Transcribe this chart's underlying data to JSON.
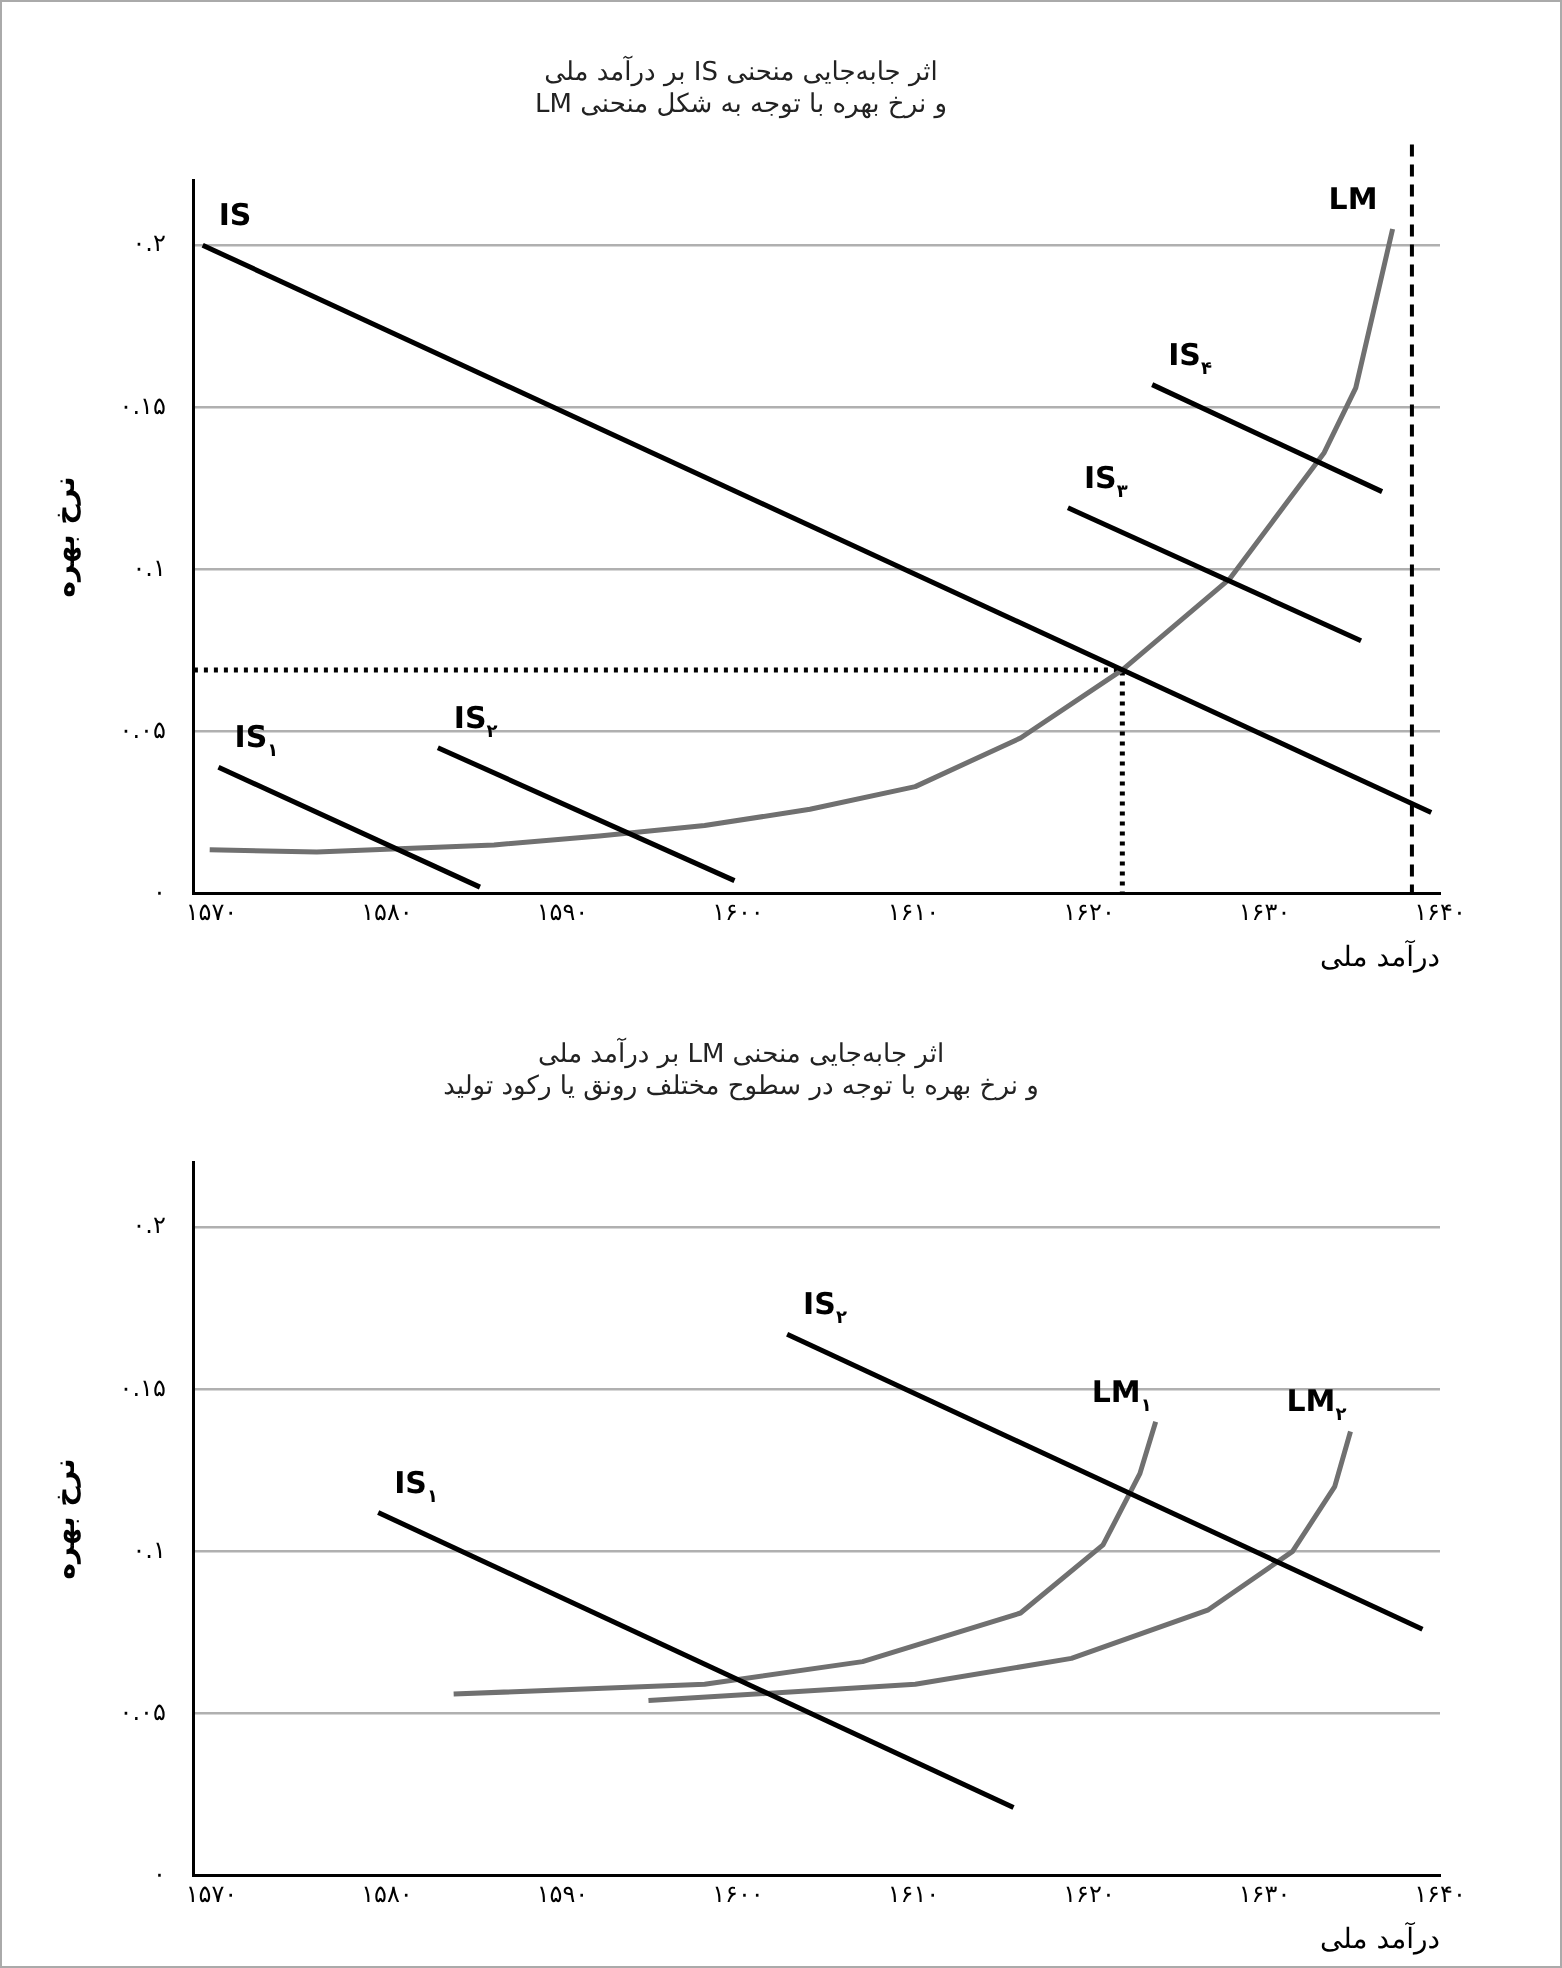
{
  "chart_data": [
    {
      "type": "line",
      "title": "اثر جابه‌جایی منحنی IS بر درآمد ملی\nو نرخ بهره با توجه به شکل منحنی LM",
      "xlabel": "درآمد ملی",
      "ylabel": "نرخ بهره",
      "xlim": [
        1569,
        1640
      ],
      "xticks": [
        {
          "value": 1570,
          "label": "۱۵۷۰"
        },
        {
          "value": 1580,
          "label": "۱۵۸۰"
        },
        {
          "value": 1590,
          "label": "۱۵۹۰"
        },
        {
          "value": 1600,
          "label": "۱۶۰۰"
        },
        {
          "value": 1610,
          "label": "۱۶۱۰"
        },
        {
          "value": 1620,
          "label": "۱۶۲۰"
        },
        {
          "value": 1630,
          "label": "۱۶۳۰"
        },
        {
          "value": 1640,
          "label": "۱۶۴۰"
        }
      ],
      "ylim": [
        0,
        0.22
      ],
      "yticks": [
        {
          "value": 0,
          "label": "۰"
        },
        {
          "value": 0.05,
          "label": "۰.۰۵"
        },
        {
          "value": 0.1,
          "label": "۰.۱"
        },
        {
          "value": 0.15,
          "label": "۰.۱۵"
        },
        {
          "value": 0.2,
          "label": "۰.۲"
        }
      ],
      "grid": "y",
      "legend": false,
      "marker": "none",
      "line_style": "solid",
      "ref_lines": [
        {
          "axis": "x",
          "value": 1638.4,
          "line_style": "dashed",
          "color": "#000000"
        }
      ],
      "series": [
        {
          "name": "IS",
          "color": "#000000",
          "x": [
            1569.5,
            1639.5
          ],
          "values": [
            0.2,
            0.025
          ]
        },
        {
          "name": "IS$_{۱}$",
          "color": "#000000",
          "x": [
            1570.4,
            1585.3
          ],
          "values": [
            0.039,
            0.002
          ]
        },
        {
          "name": "IS$_{۲}$",
          "color": "#000000",
          "x": [
            1582.9,
            1599.8
          ],
          "values": [
            0.045,
            0.004
          ]
        },
        {
          "name": "IS$_{۳}$",
          "color": "#000000",
          "x": [
            1618.8,
            1635.5
          ],
          "values": [
            0.119,
            0.078
          ]
        },
        {
          "name": "IS$_{۴}$",
          "color": "#000000",
          "x": [
            1623.6,
            1636.7
          ],
          "values": [
            0.157,
            0.124
          ]
        },
        {
          "name": "LM",
          "color": "#707070",
          "x": [
            1569.9,
            1576,
            1586.1,
            1592.1,
            1598.1,
            1604.1,
            1610.1,
            1616.1,
            1621.9,
            1628,
            1633.4,
            1635.2,
            1637.3
          ],
          "values": [
            0.0135,
            0.0128,
            0.015,
            0.0178,
            0.021,
            0.026,
            0.033,
            0.048,
            0.069,
            0.097,
            0.136,
            0.156,
            0.205
          ]
        },
        {
          "color": "#000000",
          "line_style": "dotted",
          "x": [
            1569,
            1621.9,
            1621.9
          ],
          "values": [
            0.069,
            0.069,
            0
          ]
        }
      ]
    },
    {
      "type": "line",
      "title": "اثر جابه‌جایی منحنی LM بر درآمد ملی\nو نرخ بهره با توجه در سطوح مختلف رونق یا رکود تولید",
      "xlabel": "درآمد ملی",
      "ylabel": "نرخ بهره",
      "xlim": [
        1569,
        1640
      ],
      "xticks": [
        {
          "value": 1570,
          "label": "۱۵۷۰"
        },
        {
          "value": 1580,
          "label": "۱۵۸۰"
        },
        {
          "value": 1590,
          "label": "۱۵۹۰"
        },
        {
          "value": 1600,
          "label": "۱۶۰۰"
        },
        {
          "value": 1610,
          "label": "۱۶۱۰"
        },
        {
          "value": 1620,
          "label": "۱۶۲۰"
        },
        {
          "value": 1630,
          "label": "۱۶۳۰"
        },
        {
          "value": 1640,
          "label": "۱۶۴۰"
        }
      ],
      "ylim": [
        0,
        0.22
      ],
      "yticks": [
        {
          "value": 0,
          "label": "۰"
        },
        {
          "value": 0.05,
          "label": "۰.۰۵"
        },
        {
          "value": 0.1,
          "label": "۰.۱"
        },
        {
          "value": 0.15,
          "label": "۰.۱۵"
        },
        {
          "value": 0.2,
          "label": "۰.۲"
        }
      ],
      "grid": "y",
      "legend": false,
      "marker": "none",
      "line_style": "solid",
      "series": [
        {
          "name": "IS$_{۱}$",
          "color": "#000000",
          "x": [
            1579.5,
            1615.7
          ],
          "values": [
            0.112,
            0.021
          ]
        },
        {
          "name": "IS$_{۲}$",
          "color": "#000000",
          "x": [
            1602.8,
            1639.0
          ],
          "values": [
            0.167,
            0.076
          ]
        },
        {
          "name": "LM$_{۱}$",
          "color": "#707070",
          "x": [
            1583.8,
            1598.1,
            1607.1,
            1616.1,
            1620.8,
            1622.9,
            1623.8
          ],
          "values": [
            0.056,
            0.059,
            0.066,
            0.081,
            0.102,
            0.124,
            0.14
          ]
        },
        {
          "name": "LM$_{۲}$",
          "color": "#707070",
          "x": [
            1594.9,
            1610.1,
            1619.0,
            1626.8,
            1631.6,
            1634.0,
            1634.9
          ],
          "values": [
            0.054,
            0.059,
            0.067,
            0.082,
            0.1,
            0.12,
            0.137
          ]
        }
      ]
    }
  ]
}
